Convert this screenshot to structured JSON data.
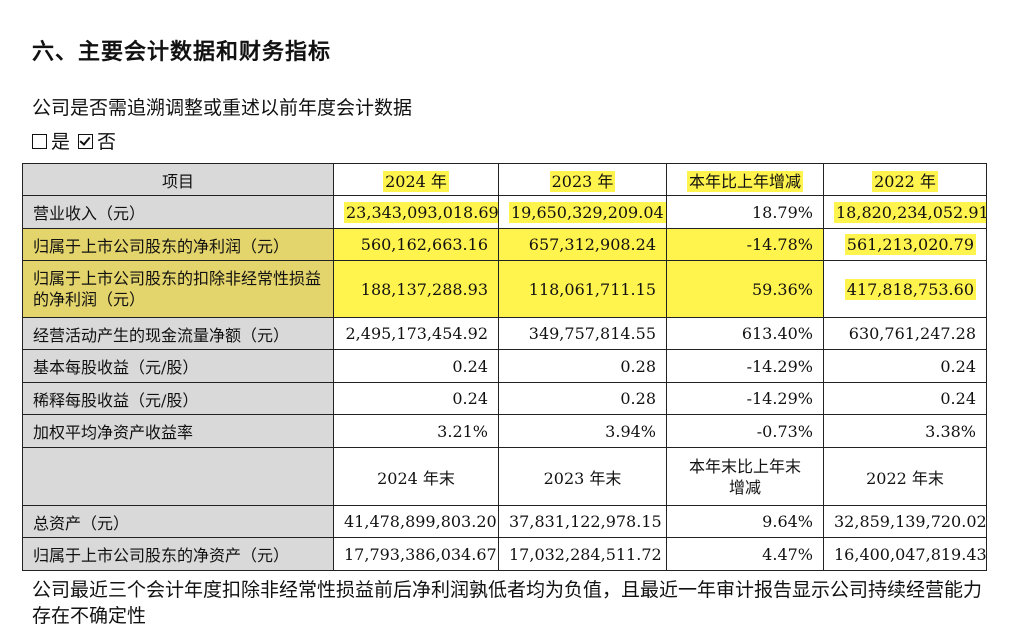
{
  "heading": "六、主要会计数据和财务指标",
  "question": "公司是否需追溯调整或重述以前年度会计数据",
  "options": [
    {
      "label": "是",
      "checked": false
    },
    {
      "label": "否",
      "checked": true
    }
  ],
  "table": {
    "header": [
      "项目",
      "2024 年",
      "2023 年",
      "本年比上年增减",
      "2022 年"
    ],
    "rows": [
      {
        "label": "营业收入（元）",
        "values": [
          "23,343,093,018.69",
          "19,650,329,209.04",
          "18.79%",
          "18,820,234,052.91"
        ]
      },
      {
        "label": "归属于上市公司股东的净利润（元）",
        "values": [
          "560,162,663.16",
          "657,312,908.24",
          "-14.78%",
          "561,213,020.79"
        ]
      },
      {
        "label": "归属于上市公司股东的扣除非经常性损益的净利润（元）",
        "values": [
          "188,137,288.93",
          "118,061,711.15",
          "59.36%",
          "417,818,753.60"
        ]
      },
      {
        "label": "经营活动产生的现金流量净额（元）",
        "values": [
          "2,495,173,454.92",
          "349,757,814.55",
          "613.40%",
          "630,761,247.28"
        ]
      },
      {
        "label": "基本每股收益（元/股）",
        "values": [
          "0.24",
          "0.28",
          "-14.29%",
          "0.24"
        ]
      },
      {
        "label": "稀释每股收益（元/股）",
        "values": [
          "0.24",
          "0.28",
          "-14.29%",
          "0.24"
        ]
      },
      {
        "label": "加权平均净资产收益率",
        "values": [
          "3.21%",
          "3.94%",
          "-0.73%",
          "3.38%"
        ]
      }
    ],
    "header2": [
      "",
      "2024 年末",
      "2023 年末",
      "本年末比上年末增减",
      "2022 年末"
    ],
    "rows2": [
      {
        "label": "总资产（元）",
        "values": [
          "41,478,899,803.20",
          "37,831,122,978.15",
          "9.64%",
          "32,859,139,720.02"
        ]
      },
      {
        "label": "归属于上市公司股东的净资产（元）",
        "values": [
          "17,793,386,034.67",
          "17,032,284,511.72",
          "4.47%",
          "16,400,047,819.43"
        ]
      }
    ]
  },
  "footnote": "公司最近三个会计年度扣除非经常性损益前后净利润孰低者均为负值，且最近一年审计报告显示公司持续经营能力存在不确定性",
  "colors": {
    "highlight": "#fff34d",
    "label_bg": "#d9d9d9",
    "border": "#222222"
  }
}
